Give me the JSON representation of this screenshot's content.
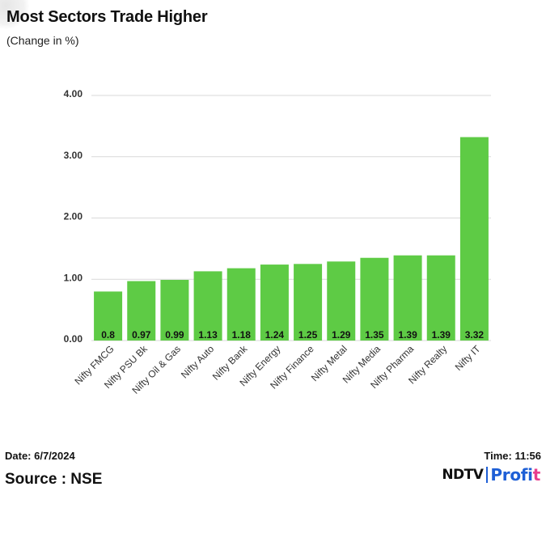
{
  "title": "Most Sectors Trade Higher",
  "subtitle": "(Change in %)",
  "footer": {
    "date": "Date: 6/7/2024",
    "time": "Time: 11:56",
    "source": "Source : NSE"
  },
  "logo": {
    "brand": "NDTV",
    "product_main": "Profi",
    "product_last": "t"
  },
  "colors": {
    "bar": "#5ecb45",
    "grid": "#d9d9d9",
    "logo_blue": "#1e5fd6",
    "logo_pink": "#e83e8c"
  },
  "chart_data": {
    "type": "bar",
    "categories": [
      "Nifty FMCG",
      "Nifty PSU Bk",
      "Nifty Oil & Gas",
      "Nifty Auto",
      "Nifty Bank",
      "Nifty Energy",
      "Nifty Finance",
      "Nifty Metal",
      "Nifty Media",
      "Nifty Pharma",
      "Nifty Realty",
      "Nifty IT"
    ],
    "values": [
      0.8,
      0.97,
      0.99,
      1.13,
      1.18,
      1.24,
      1.25,
      1.29,
      1.35,
      1.39,
      1.39,
      3.32
    ],
    "data_labels": [
      "0.8",
      "0.97",
      "0.99",
      "1.13",
      "1.18",
      "1.24",
      "1.25",
      "1.29",
      "1.35",
      "1.39",
      "1.39",
      "3.32"
    ],
    "y_ticks": [
      "0.00",
      "1.00",
      "2.00",
      "3.00",
      "4.00"
    ],
    "ylim": [
      0,
      4
    ],
    "grid": true,
    "legend": "none"
  }
}
